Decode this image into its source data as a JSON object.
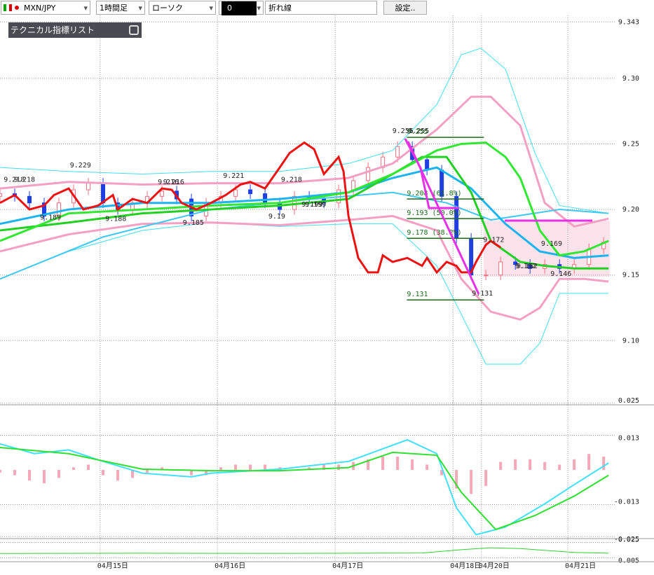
{
  "toolbar": {
    "symbol": "MXN/JPY",
    "timeframe": "1時間足",
    "chart_type": "ローソク",
    "field": "0",
    "line_type": "折れ線",
    "settings": "設定.."
  },
  "indicator_list": "テクニカル指標リスト",
  "chart_data": [
    {
      "type": "candlestick",
      "xlim": [
        0,
        125.4
      ],
      "ylim": [
        9.051,
        9.348
      ],
      "xticks": [
        {
          "value": 20.4,
          "label": "04月15日"
        },
        {
          "value": 44.3,
          "label": "04月16日"
        },
        {
          "value": 68.3,
          "label": "04月17日"
        },
        {
          "value": 92.3,
          "label": "04月18日"
        },
        {
          "value": 98.1,
          "label": "04月20日"
        },
        {
          "value": 115.7,
          "label": "04月21日"
        }
      ],
      "yticks": [
        9.343,
        {
          "value": 9.3,
          "label": "9.30"
        },
        9.25,
        {
          "value": 9.2,
          "label": "9.20"
        },
        9.15,
        {
          "value": 9.1,
          "label": "9.10"
        }
      ],
      "grid": true,
      "up_color": "#f07080",
      "down_color": "#1f3fe0",
      "candles": {
        "x": [
          0,
          3,
          6,
          9,
          12,
          15,
          18,
          21,
          24,
          27,
          30,
          33,
          36,
          39,
          42,
          45,
          48,
          51,
          54,
          57,
          60,
          63,
          66,
          69,
          72,
          75,
          78,
          81,
          84,
          87,
          90,
          93,
          96,
          99,
          102,
          105,
          108,
          111,
          114,
          117,
          120,
          123
        ],
        "open": [
          9.21,
          9.212,
          9.21,
          9.205,
          9.195,
          9.205,
          9.215,
          9.22,
          9.205,
          9.2,
          9.205,
          9.21,
          9.214,
          9.208,
          9.195,
          9.205,
          9.21,
          9.215,
          9.212,
          9.205,
          9.2,
          9.21,
          9.208,
          9.205,
          9.215,
          9.222,
          9.232,
          9.24,
          9.248,
          9.238,
          9.23,
          9.21,
          9.178,
          9.15,
          9.15,
          9.16,
          9.158,
          9.155,
          9.158,
          9.155,
          9.158,
          9.17
        ],
        "high": [
          9.216,
          9.216,
          9.214,
          9.209,
          9.209,
          9.219,
          9.224,
          9.224,
          9.209,
          9.209,
          9.214,
          9.218,
          9.218,
          9.212,
          9.209,
          9.214,
          9.219,
          9.219,
          9.216,
          9.209,
          9.214,
          9.214,
          9.212,
          9.219,
          9.226,
          9.236,
          9.244,
          9.252,
          9.252,
          9.242,
          9.234,
          9.214,
          9.182,
          9.154,
          9.164,
          9.164,
          9.162,
          9.162,
          9.162,
          9.162,
          9.174,
          9.179
        ],
        "low": [
          9.206,
          9.206,
          9.201,
          9.191,
          9.191,
          9.201,
          9.211,
          9.201,
          9.196,
          9.196,
          9.201,
          9.206,
          9.204,
          9.191,
          9.191,
          9.201,
          9.206,
          9.208,
          9.201,
          9.196,
          9.196,
          9.204,
          9.201,
          9.201,
          9.211,
          9.218,
          9.228,
          9.236,
          9.234,
          9.226,
          9.206,
          9.174,
          9.146,
          9.146,
          9.146,
          9.154,
          9.151,
          9.151,
          9.151,
          9.151,
          9.154,
          9.166
        ],
        "close": [
          9.212,
          9.21,
          9.205,
          9.195,
          9.205,
          9.215,
          9.22,
          9.205,
          9.2,
          9.205,
          9.21,
          9.214,
          9.208,
          9.195,
          9.205,
          9.21,
          9.215,
          9.212,
          9.205,
          9.2,
          9.21,
          9.208,
          9.205,
          9.215,
          9.222,
          9.232,
          9.24,
          9.248,
          9.238,
          9.23,
          9.21,
          9.178,
          9.15,
          9.15,
          9.16,
          9.158,
          9.155,
          9.158,
          9.155,
          9.158,
          9.17,
          9.175
        ]
      },
      "lines": [
        {
          "color": "#40e0f0",
          "width": 1,
          "x": [
            0,
            14,
            29,
            43,
            57,
            71,
            80,
            89,
            94,
            98,
            103,
            109,
            114,
            124
          ],
          "values": [
            9.232,
            9.229,
            9.227,
            9.229,
            9.229,
            9.235,
            9.245,
            9.28,
            9.318,
            9.323,
            9.307,
            9.243,
            9.203,
            9.197
          ]
        },
        {
          "color": "#40e0f0",
          "width": 1,
          "x": [
            0,
            14,
            29,
            43,
            57,
            71,
            80,
            89,
            94,
            99,
            106,
            110,
            114,
            124
          ],
          "values": [
            9.147,
            9.168,
            9.184,
            9.19,
            9.187,
            9.189,
            9.189,
            9.157,
            9.12,
            9.082,
            9.082,
            9.098,
            9.136,
            9.136
          ]
        },
        {
          "color": "#f4a0c4",
          "width": 3,
          "x": [
            0,
            14,
            29,
            43,
            57,
            71,
            80,
            89,
            96,
            100,
            106,
            111,
            117,
            124
          ],
          "values": [
            9.216,
            9.221,
            9.219,
            9.22,
            9.22,
            9.224,
            9.235,
            9.261,
            9.286,
            9.286,
            9.264,
            9.205,
            9.187,
            9.193
          ]
        },
        {
          "color": "#f4a0c4",
          "width": 3,
          "x": [
            0,
            14,
            29,
            43,
            57,
            71,
            80,
            89,
            94,
            100,
            106,
            110,
            114,
            119,
            124
          ],
          "values": [
            9.168,
            9.181,
            9.189,
            9.19,
            9.188,
            9.192,
            9.195,
            9.184,
            9.147,
            9.122,
            9.116,
            9.125,
            9.147,
            9.147,
            9.145
          ]
        },
        {
          "color": "#40c8f0",
          "width": 2,
          "x": [
            0,
            21,
            43,
            64,
            80,
            91,
            100,
            114,
            124
          ],
          "values": [
            9.147,
            9.179,
            9.2,
            9.208,
            9.213,
            9.205,
            9.192,
            9.2,
            9.197
          ]
        },
        {
          "color": "#1cb4f0",
          "width": 3,
          "x": [
            0,
            14,
            29,
            43,
            57,
            71,
            80,
            89,
            96,
            103,
            110,
            117,
            124
          ],
          "values": [
            9.189,
            9.2,
            9.205,
            9.205,
            9.208,
            9.213,
            9.224,
            9.232,
            9.216,
            9.189,
            9.168,
            9.163,
            9.165
          ]
        },
        {
          "color": "#22d022",
          "width": 3,
          "x": [
            0,
            14,
            29,
            43,
            57,
            71,
            80,
            86,
            91,
            96,
            100,
            106,
            111,
            117,
            124
          ],
          "values": [
            9.184,
            9.19,
            9.197,
            9.2,
            9.203,
            9.208,
            9.227,
            9.24,
            9.24,
            9.213,
            9.176,
            9.16,
            9.157,
            9.155,
            9.155
          ]
        },
        {
          "color": "#30e830",
          "width": 3,
          "x": [
            0,
            14,
            29,
            43,
            57,
            71,
            80,
            89,
            94,
            99,
            103,
            106,
            110,
            114,
            119,
            124
          ],
          "values": [
            9.176,
            9.197,
            9.2,
            9.203,
            9.205,
            9.213,
            9.227,
            9.245,
            9.25,
            9.251,
            9.24,
            9.224,
            9.184,
            9.165,
            9.168,
            9.176
          ]
        },
        {
          "color": "#ee1111",
          "width": 3,
          "x": [
            0,
            3,
            6,
            9,
            11,
            14,
            17,
            20,
            23,
            24,
            27,
            30,
            33,
            35,
            37,
            40,
            43,
            46,
            49,
            51,
            54,
            57,
            59,
            62,
            64,
            66,
            69,
            70,
            71,
            73,
            75,
            77,
            78,
            80,
            83,
            86,
            87,
            89,
            91,
            93,
            94,
            96,
            97,
            99,
            100,
            102
          ],
          "values": [
            9.205,
            9.211,
            9.2,
            9.203,
            9.211,
            9.216,
            9.2,
            9.203,
            9.211,
            9.2,
            9.208,
            9.205,
            9.216,
            9.215,
            9.205,
            9.2,
            9.205,
            9.211,
            9.219,
            9.221,
            9.216,
            9.232,
            9.243,
            9.251,
            9.246,
            9.227,
            9.24,
            9.229,
            9.195,
            9.163,
            9.152,
            9.152,
            9.165,
            9.16,
            9.163,
            9.157,
            9.163,
            9.152,
            9.16,
            9.157,
            9.152,
            9.152,
            9.16,
            9.173,
            9.176,
            9.171
          ]
        }
      ],
      "price_labels": {
        "x": [
          2.9,
          5.0,
          16.4,
          10.3,
          23.6,
          35.4,
          34.3,
          39.4,
          47.6,
          59.4,
          56.4,
          64.3,
          63.6,
          82.1,
          85.3,
          100.6,
          112.4,
          107.1,
          107.4,
          114.3,
          98.3
        ],
        "values": [
          9.218,
          9.218,
          9.229,
          9.189,
          9.188,
          9.216,
          9.216,
          9.185,
          9.221,
          9.218,
          9.19,
          9.199,
          9.199,
          9.255,
          9.255,
          9.172,
          9.169,
          9.152,
          9.152,
          9.146,
          9.131
        ]
      },
      "fibonacci": {
        "color": "#1a6a1a",
        "x": [
          82.9,
          98.6
        ],
        "levels": [
          9.255,
          {
            "value": 9.208,
            "label": "9.208 (61.8%)"
          },
          {
            "value": 9.193,
            "label": "9.193 (50.0%)"
          },
          {
            "value": 9.178,
            "label": "9.178 (38.2%)"
          },
          9.131
        ]
      }
    },
    {
      "type": "macd",
      "xlim": [
        0,
        125.4
      ],
      "ylim": [
        -0.026,
        0.026
      ],
      "yticks": [
        0.025,
        0.013,
        -0.013,
        -0.025
      ],
      "grid": true,
      "histogram": {
        "color": "#f4a8b8",
        "x": [
          0,
          3,
          6,
          9,
          12,
          15,
          18,
          21,
          24,
          27,
          30,
          33,
          36,
          39,
          42,
          45,
          48,
          51,
          54,
          57,
          60,
          63,
          66,
          69,
          72,
          75,
          78,
          81,
          84,
          87,
          90,
          93,
          96,
          99,
          102,
          105,
          108,
          111,
          114,
          117,
          120,
          123
        ],
        "values": [
          -0.001,
          -0.002,
          -0.004,
          -0.005,
          -0.003,
          0.001,
          0.002,
          -0.002,
          -0.004,
          -0.003,
          -0.001,
          0.001,
          0.0,
          -0.002,
          -0.002,
          0.001,
          0.002,
          0.002,
          0.002,
          0.001,
          0.0,
          0.001,
          0.002,
          0.002,
          0.003,
          0.004,
          0.005,
          0.005,
          0.004,
          0.002,
          -0.002,
          -0.007,
          -0.009,
          -0.006,
          0.003,
          0.004,
          0.004,
          0.003,
          0.002,
          0.004,
          0.006,
          0.005
        ]
      },
      "lines": [
        {
          "color": "#40e0f8",
          "width": 2,
          "x": [
            0,
            7,
            14,
            21,
            29,
            39,
            43,
            57,
            71,
            83,
            89,
            93,
            97,
            103,
            111,
            117,
            124
          ],
          "values": [
            0.0098,
            0.0061,
            0.0075,
            0.0032,
            -0.0012,
            -0.0026,
            -0.0012,
            0.0003,
            0.0032,
            0.0113,
            0.0061,
            -0.0142,
            -0.0243,
            -0.0214,
            -0.0127,
            -0.0055,
            0.0026
          ]
        },
        {
          "color": "#30e030",
          "width": 2,
          "x": [
            0,
            14,
            29,
            43,
            57,
            71,
            80,
            89,
            94,
            101,
            109,
            117,
            124
          ],
          "values": [
            0.0084,
            0.0061,
            0.0003,
            -0.0003,
            -0.0003,
            0.0009,
            0.0066,
            0.0055,
            -0.0084,
            -0.0223,
            -0.0171,
            -0.0098,
            -0.002
          ]
        }
      ]
    },
    {
      "type": "line",
      "xlim": [
        0,
        125.4
      ],
      "ylim": [
        0,
        0.0295
      ],
      "yticks": [
        0.025,
        0.005
      ],
      "grid": true,
      "lines": [
        {
          "color": "#30d030",
          "width": 1,
          "x": [
            0,
            29,
            57,
            86,
            94,
            100,
            106,
            117,
            124
          ],
          "values": [
            0.0107,
            0.011,
            0.0108,
            0.0112,
            0.0155,
            0.018,
            0.017,
            0.012,
            0.011
          ]
        }
      ]
    }
  ]
}
